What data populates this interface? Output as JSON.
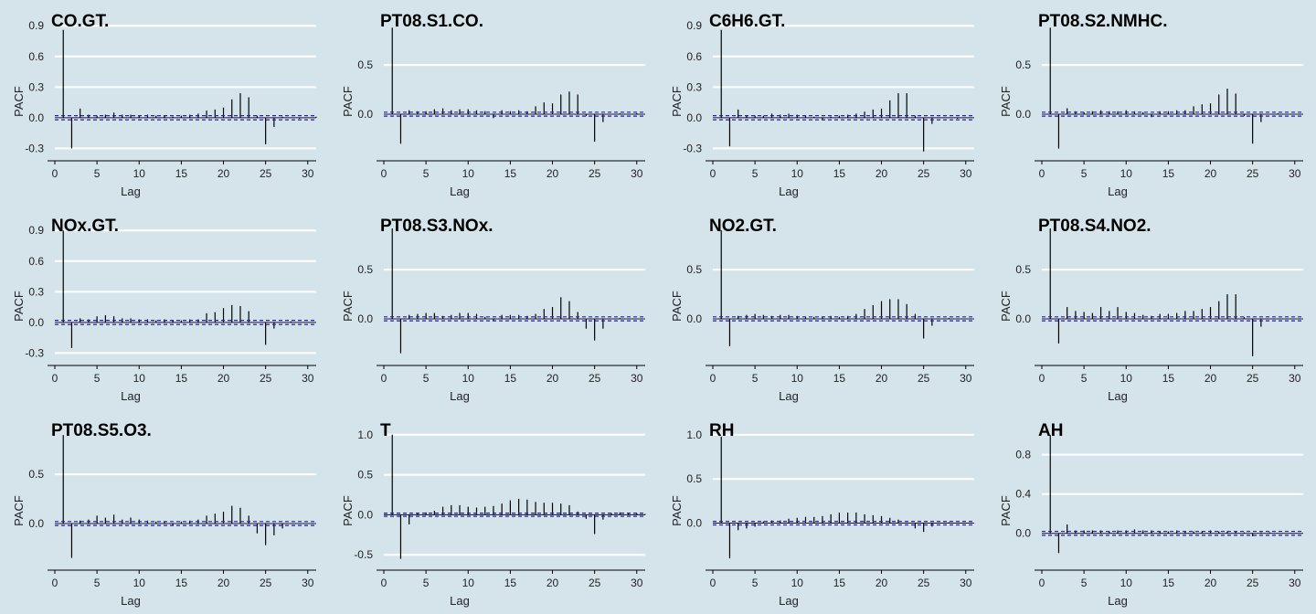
{
  "background": "#d5e4eb",
  "colors": {
    "bar": "#000000",
    "gridline": "#ffffff",
    "ci_line": "#1f1fb4",
    "axis": "#000000"
  },
  "chart_data": [
    {
      "type": "bar",
      "title": "CO.GT.",
      "xlabel": "Lag",
      "ylabel": "PACF",
      "xlim": [
        0,
        31
      ],
      "ylim": [
        -0.35,
        0.92
      ],
      "xticks": [
        0,
        5,
        10,
        15,
        20,
        25,
        30
      ],
      "xtick_labels": [
        "0",
        "5",
        "10",
        "15",
        "20",
        "25",
        "30"
      ],
      "yticks": [
        -0.3,
        0,
        0.3,
        0.6,
        0.9
      ],
      "ytick_labels": [
        "-0.3",
        "0.0",
        "0.3",
        "0.6",
        "0.9"
      ],
      "ci": 0.02,
      "x": [
        1,
        2,
        3,
        4,
        5,
        6,
        7,
        8,
        9,
        10,
        11,
        12,
        13,
        14,
        15,
        16,
        17,
        18,
        19,
        20,
        21,
        22,
        23,
        24,
        25,
        26,
        27,
        28,
        29,
        30,
        31
      ],
      "values": [
        0.86,
        -0.3,
        0.09,
        0.03,
        0.02,
        0.03,
        0.05,
        0.03,
        0.03,
        0.02,
        0.03,
        0.02,
        0.02,
        0.01,
        0.02,
        0.03,
        0.04,
        0.07,
        0.08,
        0.1,
        0.18,
        0.24,
        0.2,
        0.02,
        -0.26,
        -0.09,
        0.01,
        0.0,
        -0.01,
        0.0,
        0.01
      ]
    },
    {
      "type": "bar",
      "title": "PT08.S1.CO.",
      "xlabel": "Lag",
      "ylabel": "PACF",
      "xlim": [
        0,
        31
      ],
      "ylim": [
        -0.4,
        0.92
      ],
      "xticks": [
        0,
        5,
        10,
        15,
        20,
        25,
        30
      ],
      "xtick_labels": [
        "0",
        "5",
        "10",
        "15",
        "20",
        "25",
        "30"
      ],
      "yticks": [
        0,
        0.5
      ],
      "ytick_labels": [
        "0.0",
        "0.5"
      ],
      "ci": 0.02,
      "x": [
        1,
        2,
        3,
        4,
        5,
        6,
        7,
        8,
        9,
        10,
        11,
        12,
        13,
        14,
        15,
        16,
        17,
        18,
        19,
        20,
        21,
        22,
        23,
        24,
        25,
        26,
        27,
        28,
        29,
        30,
        31
      ],
      "values": [
        0.88,
        -0.3,
        0.04,
        0.03,
        0.03,
        0.05,
        0.06,
        0.04,
        0.05,
        0.05,
        0.04,
        0.03,
        -0.04,
        0.04,
        0.03,
        0.04,
        0.03,
        0.08,
        0.12,
        0.11,
        0.2,
        0.23,
        0.2,
        -0.02,
        -0.28,
        -0.08,
        0.0,
        0.01,
        0.0,
        0.01,
        0.0
      ]
    },
    {
      "type": "bar",
      "title": "C6H6.GT.",
      "xlabel": "Lag",
      "ylabel": "PACF",
      "xlim": [
        0,
        31
      ],
      "ylim": [
        -0.35,
        0.92
      ],
      "xticks": [
        0,
        5,
        10,
        15,
        20,
        25,
        30
      ],
      "xtick_labels": [
        "0",
        "5",
        "10",
        "15",
        "20",
        "25",
        "30"
      ],
      "yticks": [
        -0.3,
        0,
        0.3,
        0.6,
        0.9
      ],
      "ytick_labels": [
        "-0.3",
        "0.0",
        "0.3",
        "0.6",
        "0.9"
      ],
      "ci": 0.02,
      "x": [
        1,
        2,
        3,
        4,
        5,
        6,
        7,
        8,
        9,
        10,
        11,
        12,
        13,
        14,
        15,
        16,
        17,
        18,
        19,
        20,
        21,
        22,
        23,
        24,
        25,
        26,
        27,
        28,
        29,
        30,
        31
      ],
      "values": [
        0.86,
        -0.28,
        0.08,
        0.02,
        0.02,
        0.02,
        0.04,
        0.03,
        0.04,
        0.03,
        0.02,
        0.01,
        -0.02,
        0.01,
        0.02,
        0.03,
        0.04,
        0.06,
        0.08,
        0.09,
        0.17,
        0.24,
        0.24,
        0.02,
        -0.33,
        -0.06,
        0.0,
        0.0,
        -0.01,
        0.0,
        0.0
      ]
    },
    {
      "type": "bar",
      "title": "PT08.S2.NMHC.",
      "xlabel": "Lag",
      "ylabel": "PACF",
      "xlim": [
        0,
        31
      ],
      "ylim": [
        -0.4,
        0.92
      ],
      "xticks": [
        0,
        5,
        10,
        15,
        20,
        25,
        30
      ],
      "xtick_labels": [
        "0",
        "5",
        "10",
        "15",
        "20",
        "25",
        "30"
      ],
      "yticks": [
        0,
        0.5
      ],
      "ytick_labels": [
        "0.0",
        "0.5"
      ],
      "ci": 0.02,
      "x": [
        1,
        2,
        3,
        4,
        5,
        6,
        7,
        8,
        9,
        10,
        11,
        12,
        13,
        14,
        15,
        16,
        17,
        18,
        19,
        20,
        21,
        22,
        23,
        24,
        25,
        26,
        27,
        28,
        29,
        30,
        31
      ],
      "values": [
        0.88,
        -0.35,
        0.06,
        0.03,
        0.02,
        0.03,
        0.04,
        0.03,
        0.03,
        0.04,
        0.03,
        0.02,
        -0.03,
        0.03,
        0.03,
        0.04,
        0.04,
        0.08,
        0.1,
        0.11,
        0.2,
        0.26,
        0.21,
        -0.02,
        -0.3,
        -0.08,
        0.0,
        0.01,
        0.0,
        0.0,
        0.0
      ]
    },
    {
      "type": "bar",
      "title": "NOx.GT.",
      "xlabel": "Lag",
      "ylabel": "PACF",
      "xlim": [
        0,
        31
      ],
      "ylim": [
        -0.35,
        0.92
      ],
      "xticks": [
        0,
        5,
        10,
        15,
        20,
        25,
        30
      ],
      "xtick_labels": [
        "0",
        "5",
        "10",
        "15",
        "20",
        "25",
        "30"
      ],
      "yticks": [
        -0.3,
        0,
        0.3,
        0.6,
        0.9
      ],
      "ytick_labels": [
        "-0.3",
        "0.0",
        "0.3",
        "0.6",
        "0.9"
      ],
      "ci": 0.02,
      "x": [
        1,
        2,
        3,
        4,
        5,
        6,
        7,
        8,
        9,
        10,
        11,
        12,
        13,
        14,
        15,
        16,
        17,
        18,
        19,
        20,
        21,
        22,
        23,
        24,
        25,
        26,
        27,
        28,
        29,
        30,
        31
      ],
      "values": [
        0.9,
        -0.25,
        0.04,
        0.03,
        0.06,
        0.07,
        0.06,
        0.04,
        0.04,
        0.03,
        0.03,
        0.02,
        0.03,
        0.02,
        0.02,
        0.03,
        0.03,
        0.09,
        0.1,
        0.14,
        0.17,
        0.16,
        0.11,
        0.0,
        -0.22,
        -0.06,
        0.0,
        0.01,
        0.0,
        0.0,
        0.0
      ]
    },
    {
      "type": "bar",
      "title": "PT08.S3.NOx.",
      "xlabel": "Lag",
      "ylabel": "PACF",
      "xlim": [
        0,
        31
      ],
      "ylim": [
        -0.4,
        0.92
      ],
      "xticks": [
        0,
        5,
        10,
        15,
        20,
        25,
        30
      ],
      "xtick_labels": [
        "0",
        "5",
        "10",
        "15",
        "20",
        "25",
        "30"
      ],
      "yticks": [
        0,
        0.5
      ],
      "ytick_labels": [
        "0.0",
        "0.5"
      ],
      "ci": 0.02,
      "x": [
        1,
        2,
        3,
        4,
        5,
        6,
        7,
        8,
        9,
        10,
        11,
        12,
        13,
        14,
        15,
        16,
        17,
        18,
        19,
        20,
        21,
        22,
        23,
        24,
        25,
        26,
        27,
        28,
        29,
        30,
        31
      ],
      "values": [
        0.92,
        -0.35,
        0.04,
        0.05,
        0.06,
        0.06,
        0.03,
        0.04,
        0.06,
        0.06,
        0.05,
        0.02,
        -0.02,
        0.04,
        0.04,
        0.04,
        0.03,
        0.05,
        0.1,
        0.12,
        0.22,
        0.18,
        0.07,
        -0.1,
        -0.22,
        -0.1,
        0.0,
        0.01,
        0.0,
        0.0,
        0.0
      ]
    },
    {
      "type": "bar",
      "title": "NO2.GT.",
      "xlabel": "Lag",
      "ylabel": "PACF",
      "xlim": [
        0,
        31
      ],
      "ylim": [
        -0.4,
        0.92
      ],
      "xticks": [
        0,
        5,
        10,
        15,
        20,
        25,
        30
      ],
      "xtick_labels": [
        "0",
        "5",
        "10",
        "15",
        "20",
        "25",
        "30"
      ],
      "yticks": [
        0,
        0.5
      ],
      "ytick_labels": [
        "0.0",
        "0.5"
      ],
      "ci": 0.02,
      "x": [
        1,
        2,
        3,
        4,
        5,
        6,
        7,
        8,
        9,
        10,
        11,
        12,
        13,
        14,
        15,
        16,
        17,
        18,
        19,
        20,
        21,
        22,
        23,
        24,
        25,
        26,
        27,
        28,
        29,
        30,
        31
      ],
      "values": [
        0.9,
        -0.28,
        0.03,
        0.04,
        0.05,
        0.04,
        0.03,
        0.04,
        0.04,
        0.03,
        0.02,
        0.02,
        0.02,
        0.03,
        0.02,
        0.03,
        0.05,
        0.1,
        0.14,
        0.18,
        0.2,
        0.2,
        0.15,
        0.05,
        -0.2,
        -0.07,
        0.0,
        0.01,
        0.0,
        0.0,
        0.0
      ]
    },
    {
      "type": "bar",
      "title": "PT08.S4.NO2.",
      "xlabel": "Lag",
      "ylabel": "PACF",
      "xlim": [
        0,
        31
      ],
      "ylim": [
        -0.4,
        0.92
      ],
      "xticks": [
        0,
        5,
        10,
        15,
        20,
        25,
        30
      ],
      "xtick_labels": [
        "0",
        "5",
        "10",
        "15",
        "20",
        "25",
        "30"
      ],
      "yticks": [
        0,
        0.5
      ],
      "ytick_labels": [
        "0.0",
        "0.5"
      ],
      "ci": 0.02,
      "x": [
        1,
        2,
        3,
        4,
        5,
        6,
        7,
        8,
        9,
        10,
        11,
        12,
        13,
        14,
        15,
        16,
        17,
        18,
        19,
        20,
        21,
        22,
        23,
        24,
        25,
        26,
        27,
        28,
        29,
        30,
        31
      ],
      "values": [
        0.92,
        -0.25,
        0.12,
        0.08,
        0.07,
        0.06,
        0.12,
        0.08,
        0.12,
        0.07,
        0.06,
        0.04,
        0.03,
        0.05,
        0.05,
        0.06,
        0.08,
        0.08,
        0.1,
        0.12,
        0.18,
        0.25,
        0.25,
        0.02,
        -0.38,
        -0.08,
        0.0,
        0.0,
        0.0,
        0.0,
        0.0
      ]
    },
    {
      "type": "bar",
      "title": "PT08.S5.O3.",
      "xlabel": "Lag",
      "ylabel": "PACF",
      "xlim": [
        0,
        31
      ],
      "ylim": [
        -0.4,
        0.92
      ],
      "xticks": [
        0,
        5,
        10,
        15,
        20,
        25,
        30
      ],
      "xtick_labels": [
        "0",
        "5",
        "10",
        "15",
        "20",
        "25",
        "30"
      ],
      "yticks": [
        0,
        0.5
      ],
      "ytick_labels": [
        "0.0",
        "0.5"
      ],
      "ci": 0.02,
      "x": [
        1,
        2,
        3,
        4,
        5,
        6,
        7,
        8,
        9,
        10,
        11,
        12,
        13,
        14,
        15,
        16,
        17,
        18,
        19,
        20,
        21,
        22,
        23,
        24,
        25,
        26,
        27,
        28,
        29,
        30,
        31
      ],
      "values": [
        0.9,
        -0.35,
        0.03,
        0.04,
        0.08,
        0.06,
        0.09,
        0.04,
        0.06,
        0.04,
        0.03,
        0.02,
        0.02,
        -0.02,
        0.02,
        0.03,
        0.04,
        0.08,
        0.1,
        0.12,
        0.18,
        0.16,
        0.08,
        -0.1,
        -0.22,
        -0.12,
        -0.05,
        0.0,
        0.0,
        0.0,
        0.0
      ]
    },
    {
      "type": "bar",
      "title": "T",
      "xlabel": "Lag",
      "ylabel": "PACF",
      "xlim": [
        0,
        31
      ],
      "ylim": [
        -0.6,
        1.02
      ],
      "xticks": [
        0,
        5,
        10,
        15,
        20,
        25,
        30
      ],
      "xtick_labels": [
        "0",
        "5",
        "10",
        "15",
        "20",
        "25",
        "30"
      ],
      "yticks": [
        -0.5,
        0,
        0.5,
        1.0
      ],
      "ytick_labels": [
        "-0.5",
        "0.0",
        "0.5",
        "1.0"
      ],
      "ci": 0.02,
      "x": [
        1,
        2,
        3,
        4,
        5,
        6,
        7,
        8,
        9,
        10,
        11,
        12,
        13,
        14,
        15,
        16,
        17,
        18,
        19,
        20,
        21,
        22,
        23,
        24,
        25,
        26,
        27,
        28,
        29,
        30,
        31
      ],
      "values": [
        1.0,
        -0.55,
        -0.12,
        0.02,
        0.03,
        0.05,
        0.1,
        0.12,
        0.12,
        0.1,
        0.09,
        0.1,
        0.11,
        0.14,
        0.18,
        0.2,
        0.19,
        0.16,
        0.15,
        0.15,
        0.14,
        0.12,
        0.04,
        -0.05,
        -0.24,
        -0.06,
        0.02,
        0.03,
        0.02,
        0.02,
        0.01
      ]
    },
    {
      "type": "bar",
      "title": "RH",
      "xlabel": "Lag",
      "ylabel": "PACF",
      "xlim": [
        0,
        31
      ],
      "ylim": [
        -0.45,
        1.02
      ],
      "xticks": [
        0,
        5,
        10,
        15,
        20,
        25,
        30
      ],
      "xtick_labels": [
        "0",
        "5",
        "10",
        "15",
        "20",
        "25",
        "30"
      ],
      "yticks": [
        0,
        0.5,
        1.0
      ],
      "ytick_labels": [
        "0.0",
        "0.5",
        "1.0"
      ],
      "ci": 0.02,
      "x": [
        1,
        2,
        3,
        4,
        5,
        6,
        7,
        8,
        9,
        10,
        11,
        12,
        13,
        14,
        15,
        16,
        17,
        18,
        19,
        20,
        21,
        22,
        23,
        24,
        25,
        26,
        27,
        28,
        29,
        30,
        31
      ],
      "values": [
        0.98,
        -0.4,
        -0.08,
        -0.06,
        -0.04,
        0.02,
        0.03,
        0.03,
        0.05,
        0.06,
        0.07,
        0.07,
        0.08,
        0.1,
        0.12,
        0.12,
        0.12,
        0.1,
        0.09,
        0.08,
        0.06,
        0.04,
        0.0,
        -0.06,
        -0.1,
        -0.04,
        0.0,
        0.01,
        0.0,
        0.0,
        0.0
      ]
    },
    {
      "type": "bar",
      "title": "AH",
      "xlabel": "Lag",
      "ylabel": "PACF",
      "xlim": [
        0,
        31
      ],
      "ylim": [
        -0.3,
        1.02
      ],
      "xticks": [
        0,
        5,
        10,
        15,
        20,
        25,
        30
      ],
      "xtick_labels": [
        "0",
        "5",
        "10",
        "15",
        "20",
        "25",
        "30"
      ],
      "yticks": [
        0,
        0.4,
        0.8
      ],
      "ytick_labels": [
        "0.0",
        "0.4",
        "0.8"
      ],
      "ci": 0.02,
      "x": [
        1,
        2,
        3,
        4,
        5,
        6,
        7,
        8,
        9,
        10,
        11,
        12,
        13,
        14,
        15,
        16,
        17,
        18,
        19,
        20,
        21,
        22,
        23,
        24,
        25,
        26,
        27,
        28,
        29,
        30,
        31
      ],
      "values": [
        1.0,
        -0.2,
        0.09,
        0.03,
        0.03,
        0.03,
        0.03,
        0.02,
        0.03,
        0.03,
        0.04,
        0.03,
        0.03,
        0.02,
        0.02,
        0.03,
        0.02,
        0.02,
        0.02,
        0.03,
        0.02,
        0.02,
        0.02,
        0.01,
        -0.03,
        0.01,
        0.01,
        0.0,
        0.0,
        0.0,
        0.0
      ]
    }
  ]
}
